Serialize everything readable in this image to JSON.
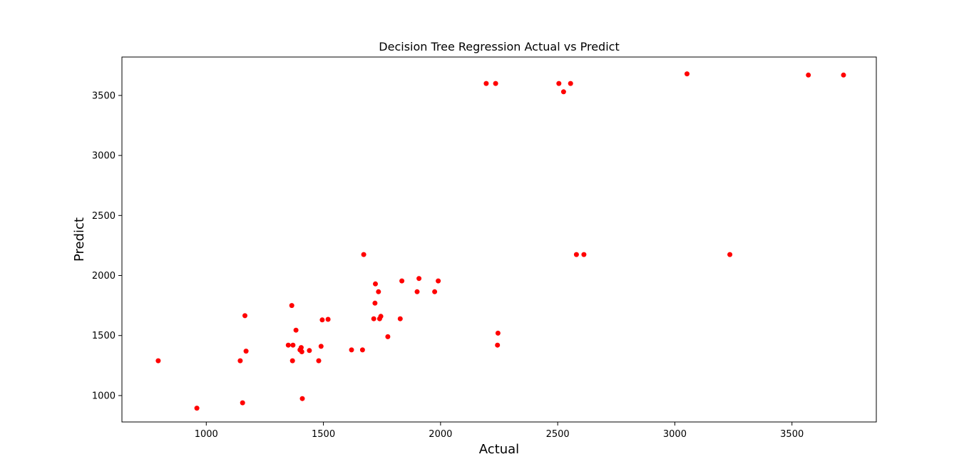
{
  "chart_data": {
    "type": "scatter",
    "title": "Decision Tree Regression Actual vs Predict",
    "xlabel": "Actual",
    "ylabel": "Predict",
    "xlim": [
      640,
      3860
    ],
    "ylim": [
      780,
      3820
    ],
    "xticks": [
      1000,
      1500,
      2000,
      2500,
      3000,
      3500
    ],
    "yticks": [
      1000,
      1500,
      2000,
      2500,
      3000,
      3500
    ],
    "grid": false,
    "legend": "none",
    "point_color": "#ff0000",
    "x": [
      795,
      960,
      1145,
      1155,
      1165,
      1170,
      1350,
      1365,
      1368,
      1370,
      1383,
      1400,
      1405,
      1408,
      1410,
      1440,
      1480,
      1490,
      1495,
      1520,
      1620,
      1667,
      1672,
      1715,
      1720,
      1722,
      1735,
      1740,
      1745,
      1775,
      1828,
      1835,
      1900,
      1908,
      1975,
      1990,
      2195,
      2235,
      2243,
      2245,
      2505,
      2525,
      2555,
      2580,
      2612,
      3052,
      3235,
      3570,
      3720
    ],
    "y": [
      1290,
      895,
      1290,
      940,
      1665,
      1370,
      1420,
      1750,
      1290,
      1420,
      1545,
      1380,
      1400,
      1365,
      975,
      1375,
      1290,
      1410,
      1630,
      1635,
      1380,
      1380,
      2175,
      1640,
      1770,
      1930,
      1865,
      1640,
      1660,
      1490,
      1640,
      1955,
      1865,
      1975,
      1865,
      1955,
      3600,
      3600,
      1420,
      1520,
      3600,
      3530,
      3600,
      2175,
      2175,
      3680,
      2175,
      3670,
      3670
    ]
  }
}
